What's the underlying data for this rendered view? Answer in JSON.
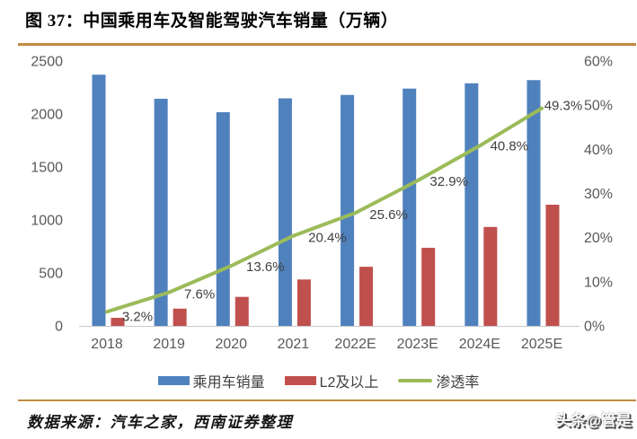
{
  "header": {
    "title": "图 37：中国乘用车及智能驾驶汽车销量（万辆）"
  },
  "chart_data": {
    "type": "bar",
    "title": "中国乘用车及智能驾驶汽车销量（万辆）",
    "categories": [
      "2018",
      "2019",
      "2020",
      "2021",
      "2022E",
      "2023E",
      "2024E",
      "2025E"
    ],
    "series": [
      {
        "name": "乘用车销量",
        "type": "bar",
        "axis": "left",
        "color": "#4F81BD",
        "values": [
          2371,
          2144,
          2017,
          2148,
          2180,
          2240,
          2290,
          2320
        ]
      },
      {
        "name": "L2及以上",
        "type": "bar",
        "axis": "left",
        "color": "#C0504D",
        "values": [
          76,
          163,
          274,
          438,
          558,
          737,
          934,
          1144
        ]
      },
      {
        "name": "渗透率",
        "type": "line",
        "axis": "right",
        "color": "#9BBB59",
        "values": [
          3.2,
          7.6,
          13.6,
          20.4,
          25.6,
          32.9,
          40.8,
          49.3
        ],
        "point_labels": [
          "3.2%",
          "7.6%",
          "13.6%",
          "20.4%",
          "25.6%",
          "32.9%",
          "40.8%",
          "49.3%"
        ]
      }
    ],
    "left_axis": {
      "min": 0,
      "max": 2500,
      "step": 500,
      "ticks": [
        "0",
        "500",
        "1000",
        "1500",
        "2000",
        "2500"
      ]
    },
    "right_axis": {
      "min": 0,
      "max": 60,
      "step": 10,
      "ticks": [
        "0%",
        "10%",
        "20%",
        "30%",
        "40%",
        "50%",
        "60%"
      ]
    },
    "grid": false,
    "legend_position": "bottom"
  },
  "legend": {
    "items": [
      {
        "label": "乘用车销量",
        "color": "#4F81BD",
        "shape": "rect"
      },
      {
        "label": "L2及以上",
        "color": "#C0504D",
        "shape": "rect"
      },
      {
        "label": "渗透率",
        "color": "#9BBB59",
        "shape": "line"
      }
    ]
  },
  "footer": {
    "source": "数据来源：汽车之家，西南证券整理",
    "watermark": "头条@管是"
  },
  "colors": {
    "accent_rule": "#C08A42",
    "axis_text": "#595959",
    "axis_line": "#C9C9C9",
    "point_label_text": "#3F3F3F"
  }
}
